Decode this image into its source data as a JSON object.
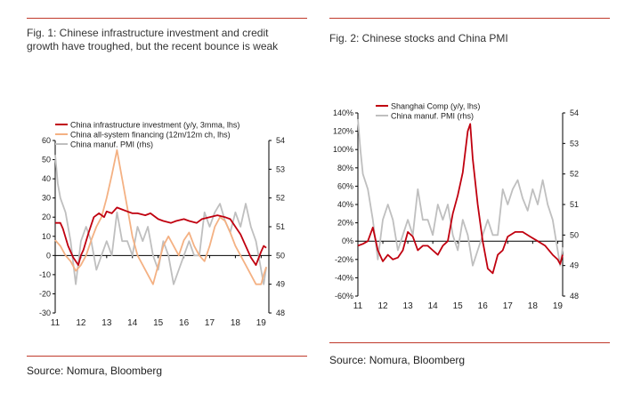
{
  "colors": {
    "accent_rule": "#c0392b",
    "infra": "#c0000f",
    "financing": "#f4b183",
    "pmi": "#bfbfbf",
    "shanghai": "#c0000f"
  },
  "left": {
    "title_line1": "Fig. 1: Chinese infrastructure investment and credit",
    "title_line2": "growth have troughed, but the recent bounce is weak",
    "source": "Source: Nomura, Bloomberg"
  },
  "right": {
    "title": "Fig. 2: Chinese stocks and China PMI",
    "source": "Source: Nomura, Bloomberg"
  },
  "chart_data": [
    {
      "type": "line",
      "x_ticks": [
        "11",
        "12",
        "13",
        "14",
        "15",
        "16",
        "17",
        "18",
        "19"
      ],
      "x_range": [
        2011.0,
        2019.3
      ],
      "y_left": {
        "range": [
          -30,
          60
        ],
        "ticks": [
          "60",
          "50",
          "40",
          "30",
          "20",
          "10",
          "0",
          "-10",
          "-20",
          "-30"
        ]
      },
      "y_right": {
        "range": [
          48,
          54
        ],
        "ticks": [
          "54",
          "53",
          "52",
          "51",
          "50",
          "49",
          "48"
        ]
      },
      "legend_position": "top-left",
      "series": [
        {
          "name": "China infrastructure investment (y/y, 3mma, lhs)",
          "axis": "left",
          "color": "#c0000f",
          "x": [
            2011.0,
            2011.2,
            2011.3,
            2011.5,
            2011.7,
            2011.9,
            2012.0,
            2012.1,
            2012.3,
            2012.5,
            2012.7,
            2012.9,
            2013.0,
            2013.2,
            2013.4,
            2013.6,
            2013.8,
            2014.0,
            2014.2,
            2014.5,
            2014.7,
            2015.0,
            2015.2,
            2015.5,
            2015.7,
            2016.0,
            2016.2,
            2016.5,
            2016.7,
            2017.0,
            2017.3,
            2017.6,
            2017.8,
            2018.0,
            2018.2,
            2018.4,
            2018.6,
            2018.8,
            2019.0,
            2019.1,
            2019.2
          ],
          "y": [
            17,
            17,
            14,
            5,
            -1,
            -5,
            0,
            3,
            12,
            20,
            22,
            20,
            23,
            22,
            25,
            24,
            23,
            22,
            22,
            21,
            22,
            19,
            18,
            17,
            18,
            19,
            18,
            17,
            19,
            20,
            21,
            20,
            19,
            15,
            11,
            5,
            -1,
            -5,
            2,
            5,
            4
          ]
        },
        {
          "name": "China all-system financing (12m/12m ch, lhs)",
          "axis": "left",
          "color": "#f4b183",
          "x": [
            2011.0,
            2011.2,
            2011.4,
            2011.6,
            2011.8,
            2012.0,
            2012.2,
            2012.4,
            2012.6,
            2012.8,
            2013.0,
            2013.2,
            2013.4,
            2013.6,
            2013.8,
            2014.0,
            2014.2,
            2014.4,
            2014.6,
            2014.8,
            2015.0,
            2015.2,
            2015.4,
            2015.6,
            2015.8,
            2016.0,
            2016.2,
            2016.4,
            2016.6,
            2016.8,
            2017.0,
            2017.2,
            2017.4,
            2017.6,
            2017.8,
            2018.0,
            2018.2,
            2018.4,
            2018.6,
            2018.8,
            2019.0,
            2019.1,
            2019.2
          ],
          "y": [
            8,
            5,
            0,
            -3,
            -8,
            -5,
            0,
            8,
            15,
            20,
            30,
            42,
            55,
            40,
            25,
            10,
            0,
            -5,
            -10,
            -15,
            -5,
            5,
            10,
            5,
            0,
            8,
            12,
            5,
            0,
            -3,
            5,
            15,
            20,
            18,
            12,
            5,
            0,
            -5,
            -10,
            -15,
            -15,
            -10,
            -6
          ]
        },
        {
          "name": "China manuf. PMI (rhs)",
          "axis": "right",
          "color": "#bfbfbf",
          "x": [
            2011.0,
            2011.1,
            2011.2,
            2011.4,
            2011.6,
            2011.8,
            2012.0,
            2012.2,
            2012.4,
            2012.6,
            2012.8,
            2013.0,
            2013.2,
            2013.4,
            2013.6,
            2013.8,
            2014.0,
            2014.2,
            2014.4,
            2014.6,
            2014.8,
            2015.0,
            2015.2,
            2015.4,
            2015.6,
            2015.8,
            2016.0,
            2016.2,
            2016.4,
            2016.6,
            2016.8,
            2017.0,
            2017.2,
            2017.4,
            2017.6,
            2017.8,
            2018.0,
            2018.2,
            2018.4,
            2018.6,
            2018.8,
            2019.0,
            2019.1,
            2019.2
          ],
          "y": [
            53.5,
            52.5,
            52.0,
            51.5,
            50.5,
            49.0,
            50.5,
            51.0,
            50.5,
            49.5,
            50.0,
            50.5,
            50.0,
            51.5,
            50.5,
            50.5,
            50.0,
            51.0,
            50.5,
            51.0,
            50.0,
            49.5,
            50.5,
            50.0,
            49.0,
            49.5,
            50.0,
            50.5,
            50.0,
            50.0,
            51.5,
            51.0,
            51.5,
            51.8,
            51.2,
            50.8,
            51.5,
            51.0,
            51.8,
            51.0,
            50.5,
            49.5,
            49.0,
            49.6
          ]
        }
      ]
    },
    {
      "type": "line",
      "x_ticks": [
        "11",
        "12",
        "13",
        "14",
        "15",
        "16",
        "17",
        "18",
        "19"
      ],
      "x_range": [
        2011.0,
        2019.2
      ],
      "y_left": {
        "range": [
          -60,
          140
        ],
        "ticks": [
          "140%",
          "120%",
          "100%",
          "80%",
          "60%",
          "40%",
          "20%",
          "0%",
          "-20%",
          "-40%",
          "-60%"
        ]
      },
      "y_right": {
        "range": [
          48,
          54
        ],
        "ticks": [
          "54",
          "53",
          "52",
          "51",
          "50",
          "49",
          "48"
        ]
      },
      "legend_position": "top-left",
      "series": [
        {
          "name": "Shanghai Comp (y/y, lhs)",
          "axis": "left",
          "color": "#c0000f",
          "x": [
            2011.0,
            2011.2,
            2011.4,
            2011.6,
            2011.8,
            2012.0,
            2012.2,
            2012.4,
            2012.6,
            2012.8,
            2013.0,
            2013.2,
            2013.4,
            2013.6,
            2013.8,
            2014.0,
            2014.2,
            2014.4,
            2014.6,
            2014.8,
            2015.0,
            2015.2,
            2015.4,
            2015.5,
            2015.6,
            2015.8,
            2016.0,
            2016.2,
            2016.4,
            2016.6,
            2016.8,
            2017.0,
            2017.3,
            2017.6,
            2017.9,
            2018.2,
            2018.5,
            2018.8,
            2019.0,
            2019.1,
            2019.2
          ],
          "y": [
            -5,
            -3,
            0,
            15,
            -10,
            -22,
            -15,
            -20,
            -18,
            -10,
            10,
            5,
            -10,
            -5,
            -5,
            -10,
            -15,
            -5,
            0,
            30,
            50,
            75,
            120,
            128,
            90,
            40,
            0,
            -30,
            -35,
            -15,
            -10,
            5,
            10,
            10,
            5,
            0,
            -5,
            -15,
            -20,
            -25,
            -15
          ]
        },
        {
          "name": "China manuf. PMI (rhs)",
          "axis": "right",
          "color": "#bfbfbf",
          "x": [
            2011.0,
            2011.1,
            2011.2,
            2011.4,
            2011.6,
            2011.8,
            2012.0,
            2012.2,
            2012.4,
            2012.6,
            2012.8,
            2013.0,
            2013.2,
            2013.4,
            2013.6,
            2013.8,
            2014.0,
            2014.2,
            2014.4,
            2014.6,
            2014.8,
            2015.0,
            2015.2,
            2015.4,
            2015.6,
            2015.8,
            2016.0,
            2016.2,
            2016.4,
            2016.6,
            2016.8,
            2017.0,
            2017.2,
            2017.4,
            2017.6,
            2017.8,
            2018.0,
            2018.2,
            2018.4,
            2018.6,
            2018.8,
            2019.0,
            2019.1,
            2019.2
          ],
          "y": [
            53.8,
            52.8,
            52.0,
            51.5,
            50.5,
            49.2,
            50.5,
            51.0,
            50.5,
            49.5,
            50.0,
            50.5,
            50.0,
            51.5,
            50.5,
            50.5,
            50.0,
            51.0,
            50.5,
            51.0,
            50.0,
            49.5,
            50.5,
            50.0,
            49.0,
            49.5,
            50.0,
            50.5,
            50.0,
            50.0,
            51.5,
            51.0,
            51.5,
            51.8,
            51.2,
            50.8,
            51.5,
            51.0,
            51.8,
            51.0,
            50.5,
            49.5,
            49.0,
            49.6
          ]
        }
      ]
    }
  ]
}
